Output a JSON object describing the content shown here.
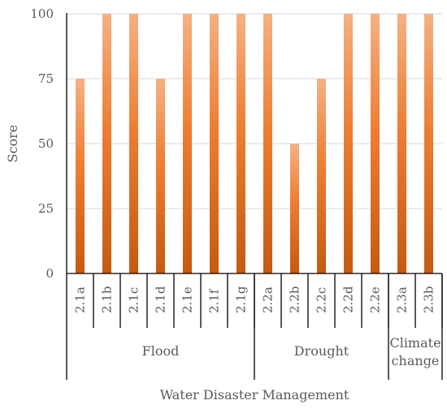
{
  "chart_data": {
    "type": "bar",
    "title": "",
    "ylabel": "Score",
    "xlabel": "Water Disaster Management",
    "ylim": [
      0,
      100
    ],
    "yticks": [
      0,
      25,
      50,
      75,
      100
    ],
    "grid": true,
    "categories": [
      "2.1a",
      "2.1b",
      "2.1c",
      "2.1d",
      "2.1e",
      "2.1f",
      "2.1g",
      "2.2a",
      "2.2b",
      "2.2c",
      "2.2d",
      "2.2e",
      "2.3a",
      "2.3b"
    ],
    "values": [
      75,
      100,
      100,
      75,
      100,
      100,
      100,
      100,
      50,
      75,
      100,
      100,
      100,
      100
    ],
    "groups": [
      {
        "label": "Flood",
        "count": 7
      },
      {
        "label": "Drought",
        "count": 5
      },
      {
        "label": "Climate change",
        "lines": [
          "Climate",
          "change"
        ],
        "count": 2
      }
    ],
    "colors": {
      "bar_top": "#F4B183",
      "bar_mid": "#ED7D31",
      "bar_bottom": "#C55A11",
      "gridline": "#D9D9D9",
      "axis": "#000000",
      "text": "#595959"
    }
  }
}
